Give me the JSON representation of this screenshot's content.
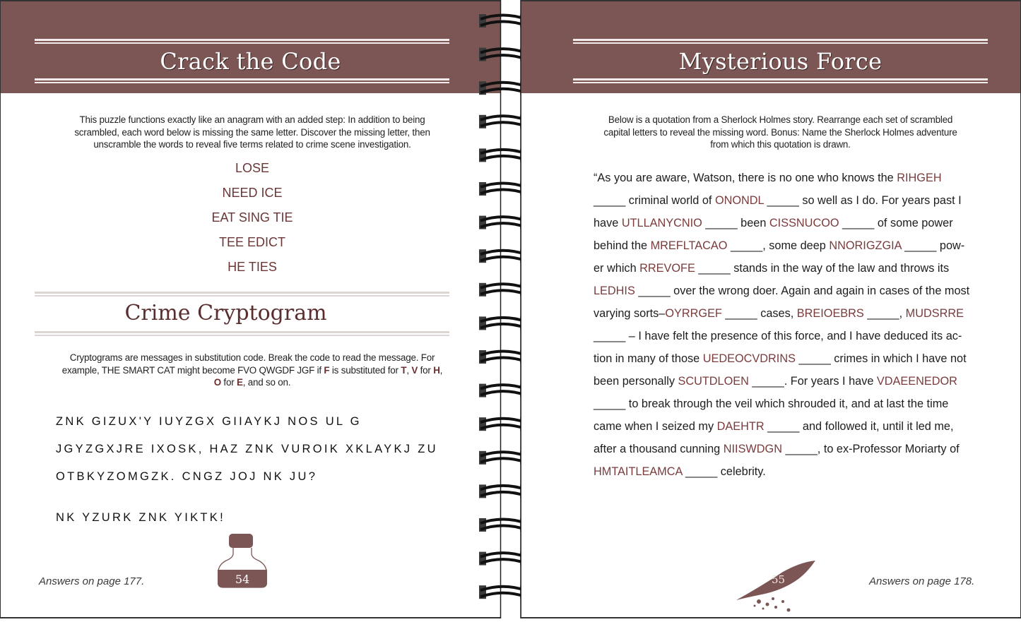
{
  "colors": {
    "band": "#7b5655",
    "code_text": "#7a3b3b"
  },
  "left_page": {
    "title": "Crack the Code",
    "intro_lines": [
      "This puzzle functions exactly like an anagram with an added step: In addition to being",
      "scrambled, each word below is missing the same letter. Discover the missing letter, then",
      "unscramble the words to reveal five terms related to crime scene investigation."
    ],
    "anagrams": [
      "LOSE",
      "NEED ICE",
      "EAT SING TIE",
      "TEE EDICT",
      "HE TIES"
    ],
    "section_title": "Crime Cryptogram",
    "crypt_intro_lines": [
      [
        {
          "t": "Cryptograms are messages in substitution code. Break the code to read the message. For"
        }
      ],
      [
        {
          "t": "example, THE SMART CAT might become FVO QWGDF JGF if "
        },
        {
          "t": "F",
          "b": true
        },
        {
          "t": " is substituted for "
        },
        {
          "t": "T",
          "b": true
        },
        {
          "t": ", "
        },
        {
          "t": "V",
          "b": true
        },
        {
          "t": " for "
        },
        {
          "t": "H",
          "b": true
        },
        {
          "t": ","
        }
      ],
      [
        {
          "t": "O",
          "b": true
        },
        {
          "t": " for "
        },
        {
          "t": "E",
          "b": true
        },
        {
          "t": ", and so on."
        }
      ]
    ],
    "cryptogram": [
      "ZNK GIZUX'Y IUYZGX GIIAYKJ NOS UL G",
      "JGYZGXJRE IXOSK, HAZ ZNK VUROIK XKLAYKJ ZU",
      "OTBKYZOMGZK. CNGZ JOJ NK JU?",
      "NK YZURK ZNK YIKTK!"
    ],
    "answers_note": "Answers on page 177.",
    "page_number": "54",
    "page_icon": "ink-bottle-icon"
  },
  "right_page": {
    "title": "Mysterious Force",
    "intro_lines": [
      "Below is a quotation from a Sherlock Holmes story. Rearrange each set of scrambled",
      "capital letters to reveal the missing word. Bonus: Name the Sherlock Holmes adventure",
      "from which this quotation is drawn."
    ],
    "quote_lines": [
      [
        {
          "t": "“As you are aware, Watson, there is no one who knows the "
        },
        {
          "t": "RIHGEH",
          "c": true
        }
      ],
      [
        {
          "t": "_____ criminal world of "
        },
        {
          "t": "ONONDL",
          "c": true
        },
        {
          "t": " _____ so well as I do. For years past I"
        }
      ],
      [
        {
          "t": "have "
        },
        {
          "t": "UTLLANYCNIO",
          "c": true
        },
        {
          "t": " _____ been "
        },
        {
          "t": "CISSNUCOO",
          "c": true
        },
        {
          "t": " _____ of some power"
        }
      ],
      [
        {
          "t": "behind the "
        },
        {
          "t": "MREFLTACAO",
          "c": true
        },
        {
          "t": " _____, some deep "
        },
        {
          "t": "NNORIGZGIA",
          "c": true
        },
        {
          "t": " _____ pow-"
        }
      ],
      [
        {
          "t": "er which "
        },
        {
          "t": "RREVOFE",
          "c": true
        },
        {
          "t": " _____ stands in the way of the law and throws its"
        }
      ],
      [
        {
          "t": "LEDHIS",
          "c": true
        },
        {
          "t": " _____ over the wrong doer. Again and again in cases of the most"
        }
      ],
      [
        {
          "t": "varying sorts–"
        },
        {
          "t": "OYRRGEF",
          "c": true
        },
        {
          "t": " _____ cases, "
        },
        {
          "t": "BREIOEBRS",
          "c": true
        },
        {
          "t": " _____, "
        },
        {
          "t": "MUDSRRE",
          "c": true
        }
      ],
      [
        {
          "t": "_____ – I have felt the presence of this force, and I have deduced its ac-"
        }
      ],
      [
        {
          "t": "tion in many of those "
        },
        {
          "t": "UEDEOCVDRINS",
          "c": true
        },
        {
          "t": " _____ crimes in which I have not"
        }
      ],
      [
        {
          "t": "been personally "
        },
        {
          "t": "SCUTDLOEN",
          "c": true
        },
        {
          "t": " _____. For years I have "
        },
        {
          "t": "VDAEENEDOR",
          "c": true
        }
      ],
      [
        {
          "t": "_____ to break through the veil which shrouded it, and at last the time"
        }
      ],
      [
        {
          "t": "came when I seized my "
        },
        {
          "t": "DAEHTR",
          "c": true
        },
        {
          "t": " _____ and followed it, until it led me,"
        }
      ],
      [
        {
          "t": "after a thousand cunning "
        },
        {
          "t": "NIISWDGN",
          "c": true
        },
        {
          "t": " _____, to ex-Professor Moriarty of"
        }
      ],
      [
        {
          "t": "HMTAITLEAMCA",
          "c": true
        },
        {
          "t": " _____ celebrity."
        }
      ]
    ],
    "answers_note": "Answers on page 178.",
    "page_number": "55",
    "page_icon": "quill-feather-icon"
  }
}
